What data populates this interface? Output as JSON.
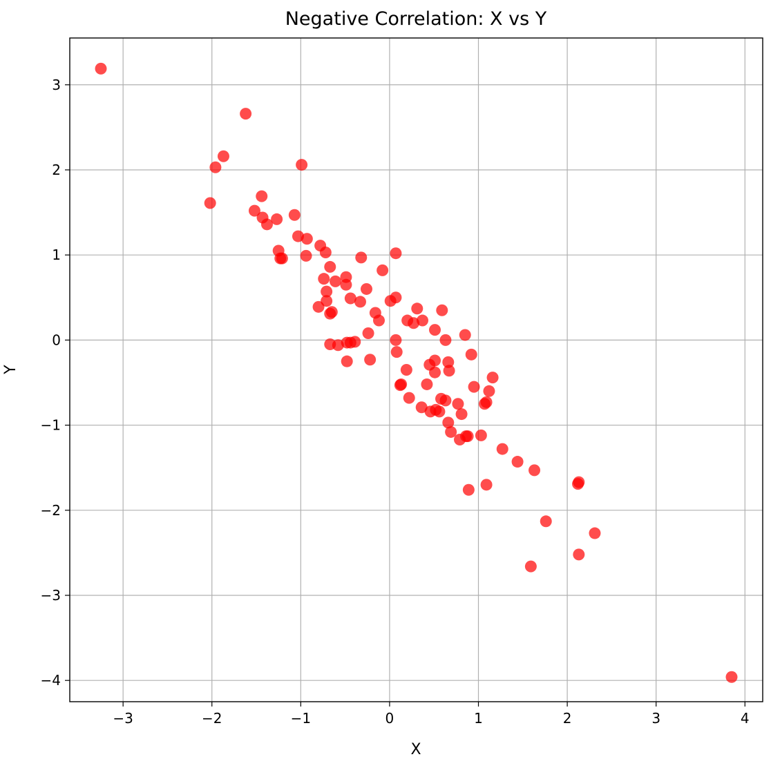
{
  "chart_data": {
    "type": "scatter",
    "title": "Negative Correlation: X vs Y",
    "xlabel": "X",
    "ylabel": "Y",
    "xlim": [
      -3.6,
      4.2
    ],
    "ylim": [
      -4.25,
      3.55
    ],
    "xticks": [
      -3,
      -2,
      -1,
      0,
      1,
      2,
      3,
      4
    ],
    "yticks": [
      3,
      2,
      1,
      0,
      -1,
      -2,
      -3,
      -4
    ],
    "grid": true,
    "point_color": "#ff0000",
    "points": [
      [
        -3.25,
        3.19
      ],
      [
        -1.62,
        2.66
      ],
      [
        -1.87,
        2.16
      ],
      [
        -1.96,
        2.03
      ],
      [
        -0.99,
        2.06
      ],
      [
        -2.02,
        1.61
      ],
      [
        -1.44,
        1.69
      ],
      [
        -1.52,
        1.52
      ],
      [
        -1.43,
        1.44
      ],
      [
        -1.38,
        1.36
      ],
      [
        -1.27,
        1.42
      ],
      [
        -1.07,
        1.47
      ],
      [
        -1.03,
        1.22
      ],
      [
        -0.93,
        1.19
      ],
      [
        -0.78,
        1.11
      ],
      [
        -0.72,
        1.03
      ],
      [
        -1.25,
        1.05
      ],
      [
        -1.23,
        0.96
      ],
      [
        -1.21,
        0.96
      ],
      [
        -0.94,
        0.99
      ],
      [
        -0.67,
        0.86
      ],
      [
        -0.74,
        0.72
      ],
      [
        -0.61,
        0.69
      ],
      [
        -0.49,
        0.74
      ],
      [
        -0.49,
        0.65
      ],
      [
        -0.71,
        0.57
      ],
      [
        -0.71,
        0.46
      ],
      [
        -0.8,
        0.39
      ],
      [
        -0.65,
        0.33
      ],
      [
        -0.67,
        0.31
      ],
      [
        -0.44,
        0.49
      ],
      [
        -0.33,
        0.45
      ],
      [
        -0.26,
        0.6
      ],
      [
        -0.32,
        0.97
      ],
      [
        -0.08,
        0.82
      ],
      [
        0.07,
        1.02
      ],
      [
        0.07,
        0.5
      ],
      [
        0.01,
        0.46
      ],
      [
        -0.16,
        0.32
      ],
      [
        -0.12,
        0.23
      ],
      [
        -0.24,
        0.08
      ],
      [
        0.31,
        0.37
      ],
      [
        0.59,
        0.35
      ],
      [
        0.2,
        0.23
      ],
      [
        0.27,
        0.2
      ],
      [
        0.37,
        0.23
      ],
      [
        0.51,
        0.12
      ],
      [
        0.63,
        0.0
      ],
      [
        0.85,
        0.06
      ],
      [
        0.07,
        0.0
      ],
      [
        -0.67,
        -0.05
      ],
      [
        -0.58,
        -0.06
      ],
      [
        -0.48,
        -0.03
      ],
      [
        -0.44,
        -0.03
      ],
      [
        -0.39,
        -0.02
      ],
      [
        -0.48,
        -0.25
      ],
      [
        -0.22,
        -0.23
      ],
      [
        0.08,
        -0.14
      ],
      [
        0.19,
        -0.35
      ],
      [
        0.45,
        -0.29
      ],
      [
        0.51,
        -0.24
      ],
      [
        0.51,
        -0.38
      ],
      [
        0.66,
        -0.26
      ],
      [
        0.67,
        -0.36
      ],
      [
        0.92,
        -0.17
      ],
      [
        1.16,
        -0.44
      ],
      [
        0.95,
        -0.55
      ],
      [
        1.12,
        -0.6
      ],
      [
        0.12,
        -0.53
      ],
      [
        0.13,
        -0.52
      ],
      [
        0.42,
        -0.52
      ],
      [
        0.22,
        -0.68
      ],
      [
        0.58,
        -0.69
      ],
      [
        0.63,
        -0.71
      ],
      [
        0.77,
        -0.75
      ],
      [
        1.09,
        -0.73
      ],
      [
        1.07,
        -0.75
      ],
      [
        0.36,
        -0.79
      ],
      [
        0.46,
        -0.84
      ],
      [
        0.52,
        -0.82
      ],
      [
        0.56,
        -0.84
      ],
      [
        0.81,
        -0.87
      ],
      [
        0.66,
        -0.97
      ],
      [
        0.69,
        -1.08
      ],
      [
        0.79,
        -1.17
      ],
      [
        0.86,
        -1.13
      ],
      [
        0.88,
        -1.13
      ],
      [
        1.03,
        -1.12
      ],
      [
        1.27,
        -1.28
      ],
      [
        1.44,
        -1.43
      ],
      [
        1.63,
        -1.53
      ],
      [
        2.13,
        -1.67
      ],
      [
        2.12,
        -1.69
      ],
      [
        0.89,
        -1.76
      ],
      [
        1.09,
        -1.7
      ],
      [
        1.76,
        -2.13
      ],
      [
        2.31,
        -2.27
      ],
      [
        2.13,
        -2.52
      ],
      [
        1.59,
        -2.66
      ],
      [
        3.85,
        -3.96
      ]
    ]
  }
}
